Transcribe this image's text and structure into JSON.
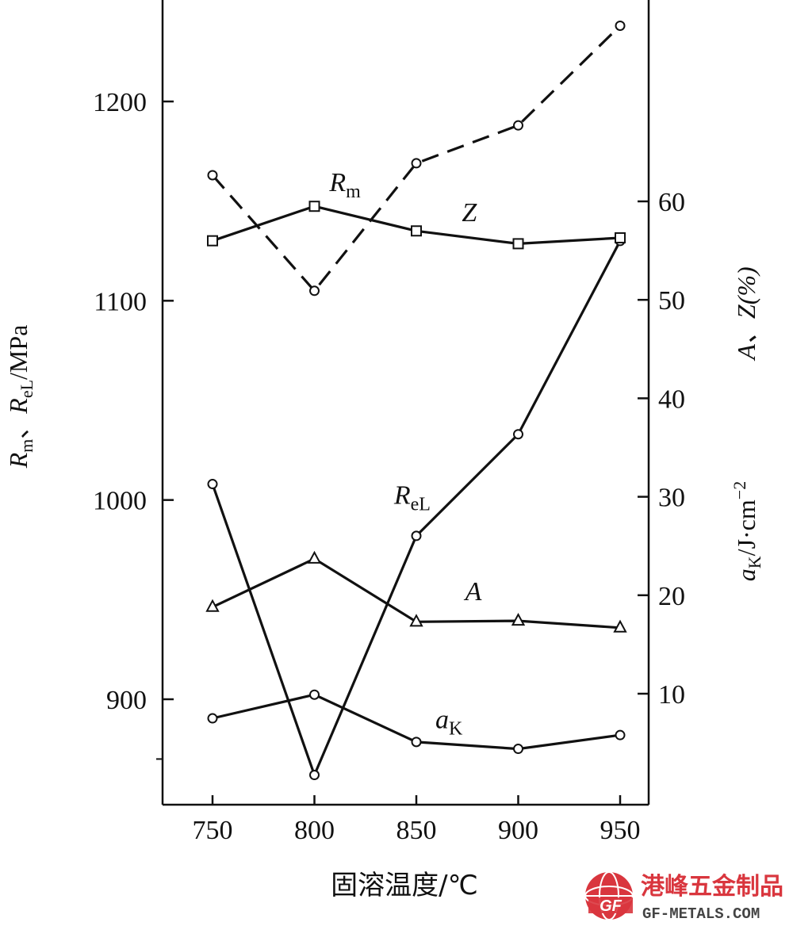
{
  "chart_data": {
    "type": "line",
    "x": [
      750,
      800,
      850,
      900,
      950
    ],
    "xlabel": "固溶温度/℃",
    "xlim": [
      730,
      970
    ],
    "left_axis": {
      "label": "Rm、ReL/MPa",
      "label_base_1": "R",
      "label_sub_1": "m",
      "label_sep": "、",
      "label_base_2": "R",
      "label_sub_2": "eL",
      "label_unit": "/MPa",
      "ylim": [
        850,
        1250
      ],
      "ticks": [
        900,
        1000,
        1100,
        1200
      ]
    },
    "right_axis": {
      "label_top": "A、Z(%)",
      "label_bottom_base": "a",
      "label_bottom_sub": "K",
      "label_bottom_unit": "/J·cm",
      "label_bottom_exp": "−2",
      "ylim": [
        0,
        80
      ],
      "ticks": [
        10,
        20,
        30,
        40,
        50,
        60
      ]
    },
    "series": [
      {
        "name": "Rm",
        "label_base": "R",
        "label_sub": "m",
        "axis": "left",
        "style": "dashed",
        "marker": "circle",
        "values": [
          1163,
          1105,
          1169,
          1188,
          1238
        ],
        "label_at": [
          815,
          1155
        ]
      },
      {
        "name": "ReL",
        "label_base": "R",
        "label_sub": "eL",
        "axis": "left",
        "style": "solid",
        "marker": "circle",
        "values": [
          1008,
          862,
          982,
          1033,
          1130
        ],
        "label_at": [
          848,
          998
        ]
      },
      {
        "name": "Z",
        "label_base": "Z",
        "label_sub": "",
        "axis": "right",
        "style": "solid",
        "marker": "square",
        "values": [
          56,
          59.5,
          57,
          55.7,
          56.3
        ],
        "label_at": [
          876,
          58
        ]
      },
      {
        "name": "A",
        "label_base": "A",
        "label_sub": "",
        "axis": "right",
        "style": "solid",
        "marker": "triangle",
        "values": [
          18.8,
          23.7,
          17.3,
          17.4,
          16.7
        ],
        "label_at": [
          878,
          19.5
        ]
      },
      {
        "name": "aK",
        "label_base": "a",
        "label_sub": "K",
        "axis": "right",
        "style": "solid",
        "marker": "circle",
        "values": [
          7.5,
          9.9,
          5.1,
          4.4,
          5.8
        ],
        "label_at": [
          866,
          6.5
        ]
      }
    ],
    "grid": false
  },
  "watermark": {
    "logo_text": "GF",
    "brand_cn": "港峰五金制品",
    "brand_en": "GF-METALS.COM"
  }
}
